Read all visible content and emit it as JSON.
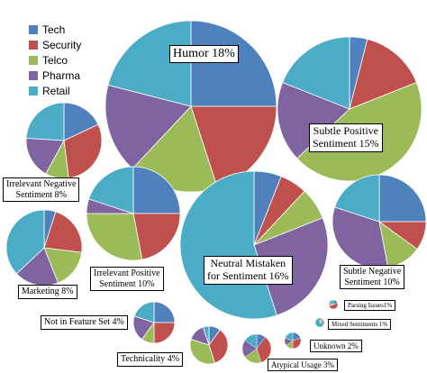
{
  "chart_data": {
    "type": "pie",
    "legend": {
      "placement": "top-left",
      "entries": [
        {
          "name": "Tech",
          "color": "#4F81BD"
        },
        {
          "name": "Security",
          "color": "#C0504D"
        },
        {
          "name": "Telco",
          "color": "#9BBB59"
        },
        {
          "name": "Pharma",
          "color": "#8064A2"
        },
        {
          "name": "Retail",
          "color": "#4BACC6"
        }
      ]
    },
    "pies": [
      {
        "label_lines": [
          "Humor 18%"
        ],
        "share": 18,
        "values": [
          25,
          20,
          17,
          17,
          21
        ]
      },
      {
        "label_lines": [
          "Subtle Positive",
          "Sentiment 15%"
        ],
        "share": 15,
        "values": [
          4,
          15,
          44,
          18,
          19
        ]
      },
      {
        "label_lines": [
          "Irrelevant Negative",
          "Sentiment 8%"
        ],
        "share": 8,
        "values": [
          18,
          30,
          10,
          18,
          24
        ]
      },
      {
        "label_lines": [
          "Irrelevant Positive",
          "Sentiment 10%"
        ],
        "share": 10,
        "values": [
          25,
          22,
          28,
          5,
          20
        ]
      },
      {
        "label_lines": [
          "Neutral Mistaken",
          "for Sentiment 16%"
        ],
        "share": 16,
        "values": [
          6,
          6,
          7,
          26,
          55
        ]
      },
      {
        "label_lines": [
          "Subtle Negative",
          "Sentiment 10%"
        ],
        "share": 10,
        "values": [
          25,
          10,
          12,
          33,
          20
        ]
      },
      {
        "label_lines": [
          "Marketing 8%"
        ],
        "share": 8,
        "values": [
          5,
          22,
          17,
          19,
          37
        ]
      },
      {
        "label_lines": [
          "Not in Feature Set 4%"
        ],
        "share": 4,
        "values": [
          25,
          25,
          10,
          20,
          20
        ]
      },
      {
        "label_lines": [
          "Technicality 4%"
        ],
        "share": 4,
        "values": [
          10,
          35,
          35,
          15,
          5
        ]
      },
      {
        "label_lines": [
          "Atypical Usage 3%"
        ],
        "share": 3,
        "values": [
          10,
          35,
          20,
          20,
          15
        ]
      },
      {
        "label_lines": [
          "Unknown 2%"
        ],
        "share": 2,
        "values": [
          20,
          30,
          15,
          15,
          20
        ]
      },
      {
        "label_lines": [
          "Parsing Issues1%"
        ],
        "share": 1,
        "values": [
          20,
          50,
          5,
          5,
          20
        ]
      },
      {
        "label_lines": [
          "Mixed Sentiments 1%"
        ],
        "share": 1,
        "values": [
          5,
          5,
          10,
          10,
          70
        ]
      }
    ]
  }
}
